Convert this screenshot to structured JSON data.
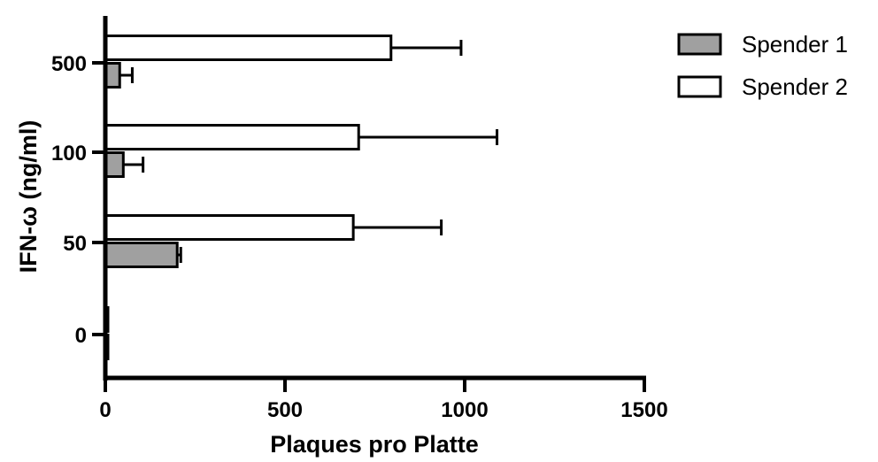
{
  "chart_data": {
    "type": "bar",
    "orientation": "horizontal",
    "categories": [
      "0",
      "50",
      "100",
      "500"
    ],
    "series": [
      {
        "name": "Spender 1",
        "values": [
          0,
          200,
          50,
          40
        ],
        "errors": [
          0,
          10,
          55,
          35
        ],
        "color": "#a0a0a0"
      },
      {
        "name": "Spender 2",
        "values": [
          0,
          690,
          705,
          795
        ],
        "errors": [
          0,
          245,
          385,
          195
        ],
        "color": "#ffffff"
      }
    ],
    "xlabel": "Plaques pro Platte",
    "ylabel": "IFN-ω (ng/ml)",
    "xlim": [
      0,
      1500
    ],
    "xticks": [
      "0",
      "500",
      "1000",
      "1500"
    ],
    "legend_position": "top-right",
    "grid": false
  }
}
